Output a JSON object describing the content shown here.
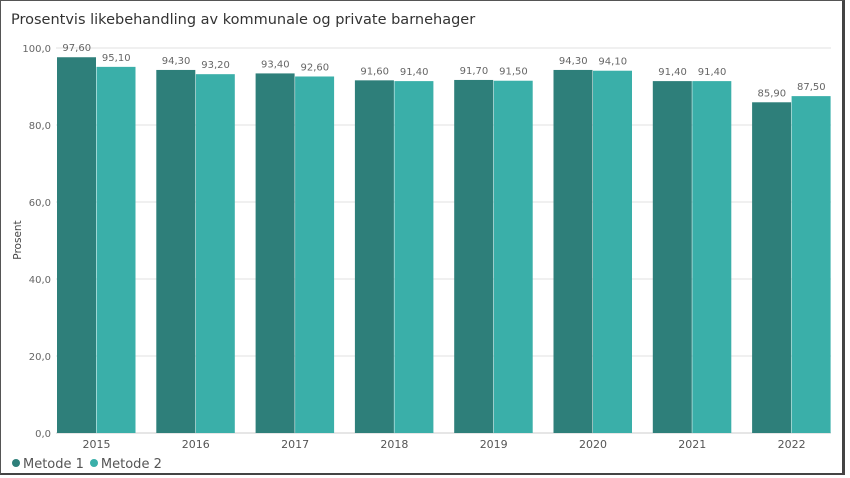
{
  "chart_data": {
    "type": "bar",
    "title": "Prosentvis likebehandling av kommunale og private barnehager",
    "xlabel": "",
    "ylabel": "Prosent",
    "ylim": [
      0,
      100
    ],
    "yticks": [
      "0,0",
      "20,0",
      "40,0",
      "60,0",
      "80,0",
      "100,0"
    ],
    "categories": [
      "2015",
      "2016",
      "2017",
      "2018",
      "2019",
      "2020",
      "2021",
      "2022"
    ],
    "series": [
      {
        "name": "Metode 1",
        "color": "#2e7f7a",
        "values": [
          97.6,
          94.3,
          93.4,
          91.6,
          91.7,
          94.3,
          91.4,
          85.9
        ],
        "labels": [
          "97,60",
          "94,30",
          "93,40",
          "91,60",
          "91,70",
          "94,30",
          "91,40",
          "85,90"
        ]
      },
      {
        "name": "Metode 2",
        "color": "#3aafa9",
        "values": [
          95.1,
          93.2,
          92.6,
          91.4,
          91.5,
          94.1,
          91.4,
          87.5
        ],
        "labels": [
          "95,10",
          "93,20",
          "92,60",
          "91,40",
          "91,50",
          "94,10",
          "91,40",
          "87,50"
        ]
      }
    ],
    "grid": true,
    "legend_position": "bottom-left"
  }
}
